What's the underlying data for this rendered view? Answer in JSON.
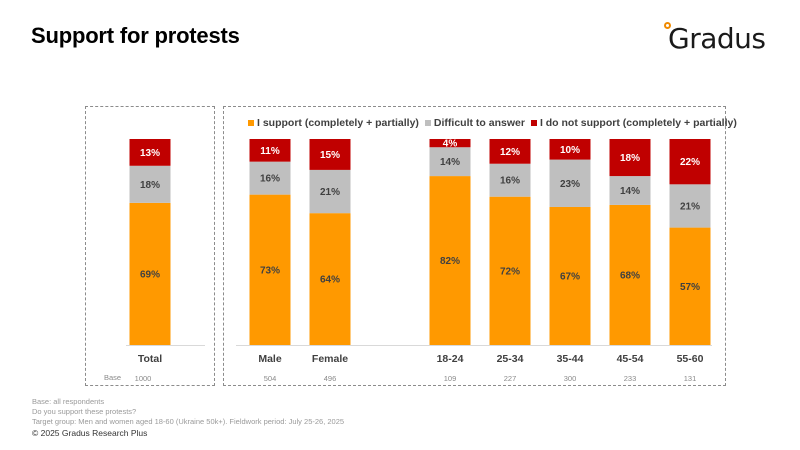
{
  "header": {
    "title": "Support for protests",
    "logo_text": "Gradus"
  },
  "chart_data": {
    "type": "bar",
    "stacked": true,
    "title": "Support for protests",
    "xlabel": "",
    "ylabel": "",
    "ylim": [
      0,
      100
    ],
    "grid": false,
    "legend_position": "top",
    "categories": [
      "Total",
      "Male",
      "Female",
      "18-24",
      "25-34",
      "35-44",
      "45-54",
      "55-60"
    ],
    "groups": [
      {
        "name": "total",
        "categories": [
          "Total"
        ]
      },
      {
        "name": "breakdown",
        "categories": [
          "Male",
          "Female",
          "18-24",
          "25-34",
          "35-44",
          "45-54",
          "55-60"
        ]
      }
    ],
    "series": [
      {
        "name": "I support (completely + partially)",
        "color": "#ff9900",
        "values": [
          69,
          73,
          64,
          82,
          72,
          67,
          68,
          57
        ]
      },
      {
        "name": "Difficult to answer",
        "color": "#bfbfbf",
        "values": [
          18,
          16,
          21,
          14,
          16,
          23,
          14,
          21
        ]
      },
      {
        "name": "I do not support (completely + partially)",
        "color": "#c00000",
        "values": [
          13,
          11,
          15,
          4,
          12,
          10,
          18,
          22
        ]
      }
    ],
    "base_label": "Base",
    "base_values": [
      1000,
      504,
      496,
      109,
      227,
      300,
      233,
      131
    ]
  },
  "notes": {
    "base": "Base: all respondents",
    "question": "Do you support these protests?",
    "target": "Target group: Men and women aged 18-60 (Ukraine 50k+). Fieldwork period: July 25-26, 2025"
  },
  "copyright": "© 2025 Gradus Research Plus"
}
